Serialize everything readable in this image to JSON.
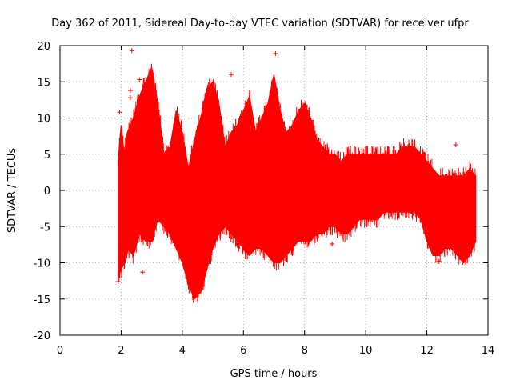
{
  "chart_data": {
    "type": "scatter",
    "title": "Day 362 of 2011, Sidereal Day-to-day VTEC variation (SDTVAR) for receiver ufpr",
    "xlabel": "GPS time / hours",
    "ylabel": "SDTVAR / TECUs",
    "xlim": [
      0,
      14
    ],
    "ylim": [
      -20,
      20
    ],
    "xticks": [
      "0",
      "2",
      "4",
      "6",
      "8",
      "10",
      "12",
      "14"
    ],
    "yticks": [
      "-20",
      "-15",
      "-10",
      "-5",
      "0",
      "5",
      "10",
      "15",
      "20"
    ],
    "grid": true,
    "marker": "+",
    "color": "#ff0000",
    "series": [
      {
        "name": "SDTVAR",
        "envelope": {
          "x": [
            1.9,
            2.0,
            2.1,
            2.2,
            2.4,
            2.6,
            2.8,
            3.0,
            3.2,
            3.4,
            3.6,
            3.8,
            4.0,
            4.2,
            4.4,
            4.6,
            4.8,
            5.0,
            5.2,
            5.4,
            5.6,
            5.8,
            6.0,
            6.2,
            6.4,
            6.6,
            6.8,
            7.0,
            7.2,
            7.4,
            7.6,
            7.8,
            8.0,
            8.2,
            8.4,
            8.6,
            8.8,
            9.0,
            9.2,
            9.4,
            9.6,
            9.8,
            10.0,
            10.2,
            10.4,
            10.6,
            10.8,
            11.0,
            11.2,
            11.4,
            11.6,
            11.8,
            12.0,
            12.2,
            12.4,
            12.6,
            12.8,
            13.0,
            13.2,
            13.4,
            13.6
          ],
          "upper": [
            4,
            9,
            5,
            8,
            10,
            13,
            15,
            17,
            12,
            5,
            6,
            11,
            8,
            3,
            7,
            10,
            14,
            15,
            12,
            6,
            8,
            9,
            11,
            13,
            8,
            10,
            12,
            16,
            11,
            8,
            9,
            11,
            12,
            10,
            7,
            6,
            5,
            5,
            4,
            5,
            5,
            5,
            5,
            5,
            5,
            5,
            5,
            5,
            6,
            6,
            6,
            5,
            4,
            3,
            2,
            2,
            2,
            2,
            2,
            3,
            2
          ],
          "lower": [
            -12,
            -11,
            -10,
            -8,
            -9,
            -6,
            -7,
            -7,
            -4,
            -5,
            -6,
            -8,
            -10,
            -13,
            -15,
            -14,
            -11,
            -8,
            -6,
            -5,
            -6,
            -7,
            -8,
            -9,
            -8,
            -8,
            -9,
            -10,
            -10,
            -9,
            -8,
            -7,
            -7,
            -7,
            -6,
            -6,
            -5,
            -5,
            -6,
            -6,
            -5,
            -4,
            -4,
            -4,
            -4,
            -3,
            -3,
            -3,
            -3,
            -3,
            -3,
            -4,
            -7,
            -9,
            -9,
            -8,
            -8,
            -9,
            -10,
            -9,
            -7
          ]
        },
        "outliers": [
          {
            "x": 2.35,
            "y": 19.3
          },
          {
            "x": 7.05,
            "y": 18.9
          },
          {
            "x": 5.6,
            "y": 16.0
          },
          {
            "x": 2.6,
            "y": 15.3
          },
          {
            "x": 2.3,
            "y": 13.8
          },
          {
            "x": 2.3,
            "y": 12.8
          },
          {
            "x": 1.95,
            "y": 10.8
          },
          {
            "x": 12.95,
            "y": 6.3
          },
          {
            "x": 13.2,
            "y": -9.6
          },
          {
            "x": 2.7,
            "y": -11.3
          },
          {
            "x": 1.9,
            "y": -12.6
          },
          {
            "x": 8.9,
            "y": -7.4
          },
          {
            "x": 12.4,
            "y": -9.8
          }
        ]
      }
    ]
  }
}
